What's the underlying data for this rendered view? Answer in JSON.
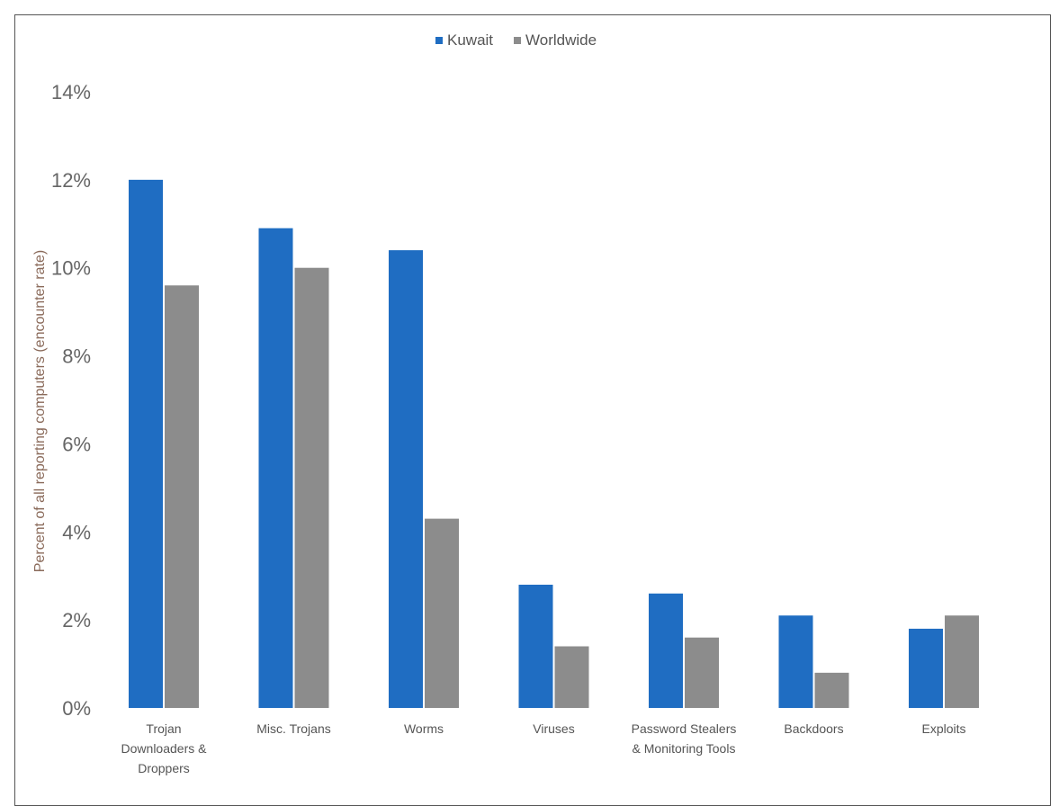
{
  "chart_data": {
    "type": "bar",
    "categories": [
      "Trojan Downloaders & Droppers",
      "Misc. Trojans",
      "Worms",
      "Viruses",
      "Password Stealers & Monitoring Tools",
      "Backdoors",
      "Exploits"
    ],
    "category_lines": [
      [
        "Trojan",
        "Downloaders &",
        "Droppers"
      ],
      [
        "Misc. Trojans"
      ],
      [
        "Worms"
      ],
      [
        "Viruses"
      ],
      [
        "Password Stealers",
        "& Monitoring Tools"
      ],
      [
        "Backdoors"
      ],
      [
        "Exploits"
      ]
    ],
    "series": [
      {
        "name": "Kuwait",
        "color": "#1f6dc2",
        "values": [
          12.0,
          10.9,
          10.4,
          2.8,
          2.6,
          2.1,
          1.8
        ]
      },
      {
        "name": "Worldwide",
        "color": "#8c8c8c",
        "values": [
          9.6,
          10.0,
          4.3,
          1.4,
          1.6,
          0.8,
          2.1
        ]
      }
    ],
    "title": "",
    "xlabel": "",
    "ylabel": "Percent of all reporting computers (encounter rate)",
    "ylim": [
      0,
      14
    ],
    "yticks": [
      "0%",
      "2%",
      "4%",
      "6%",
      "8%",
      "10%",
      "12%",
      "14%"
    ],
    "ytick_values": [
      0,
      2,
      4,
      6,
      8,
      10,
      12,
      14
    ],
    "grid": false,
    "legend": "top-center"
  }
}
